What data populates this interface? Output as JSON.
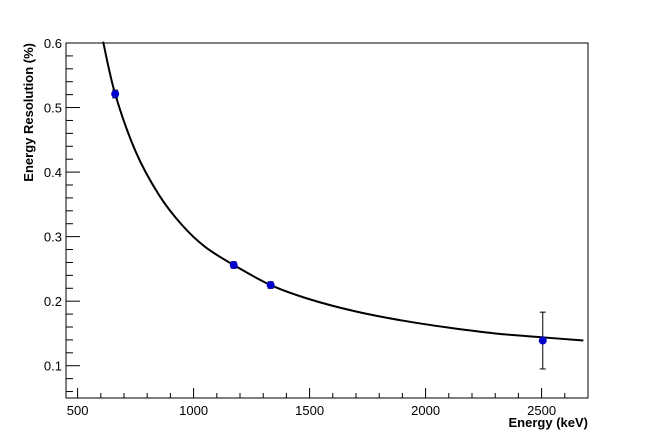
{
  "chart_data": {
    "type": "scatter",
    "title": "",
    "xlabel": "Energy (keV)",
    "ylabel": "Energy Resolution (%)",
    "xlim": [
      450,
      2700
    ],
    "ylim": [
      0.05,
      0.6
    ],
    "x_ticks": [
      500,
      1000,
      1500,
      2000,
      2500
    ],
    "x_tick_labels": [
      "500",
      "1000",
      "1500",
      "2000",
      "2500"
    ],
    "y_ticks": [
      0.1,
      0.2,
      0.3,
      0.4,
      0.5,
      0.6
    ],
    "y_tick_labels": [
      "0.1",
      "0.2",
      "0.3",
      "0.4",
      "0.5",
      "0.6"
    ],
    "grid": false,
    "marker_color": "#0000cc",
    "curve_color": "#000000",
    "points": [
      {
        "x": 662,
        "y": 0.521,
        "yerr": 0.006
      },
      {
        "x": 1173,
        "y": 0.256,
        "yerr": 0.005
      },
      {
        "x": 1332,
        "y": 0.225,
        "yerr": 0.005
      },
      {
        "x": 2505,
        "y": 0.139,
        "yerr": 0.044
      }
    ],
    "fit_curve": {
      "type": "line",
      "points": [
        [
          610,
          0.602
        ],
        [
          662,
          0.521
        ],
        [
          750,
          0.432
        ],
        [
          850,
          0.365
        ],
        [
          950,
          0.318
        ],
        [
          1050,
          0.284
        ],
        [
          1173,
          0.256
        ],
        [
          1332,
          0.225
        ],
        [
          1500,
          0.203
        ],
        [
          1700,
          0.184
        ],
        [
          1900,
          0.17
        ],
        [
          2100,
          0.159
        ],
        [
          2300,
          0.15
        ],
        [
          2505,
          0.144
        ],
        [
          2680,
          0.139
        ]
      ]
    }
  }
}
